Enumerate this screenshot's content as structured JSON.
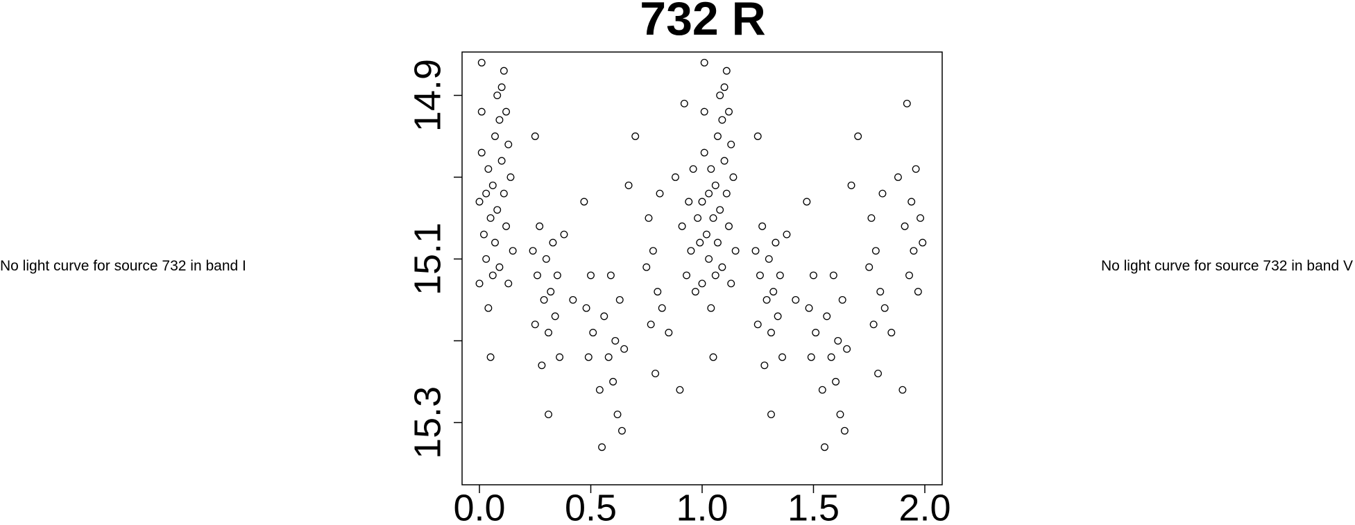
{
  "left_text": "No light curve for source 732 in band I",
  "right_text": "No light curve for source 732 in band V",
  "chart_data": {
    "type": "scatter",
    "title": "732 R",
    "x": [
      0,
      0,
      0.01,
      0.01,
      0.01,
      0.02,
      0.03,
      0.03,
      0.04,
      0.04,
      0.05,
      0.05,
      0.06,
      0.06,
      0.07,
      0.07,
      0.08,
      0.08,
      0.09,
      0.09,
      0.1,
      0.1,
      0.11,
      0.11,
      0.12,
      0.12,
      0.13,
      0.13,
      0.14,
      0.15,
      0.24,
      0.25,
      0.25,
      0.26,
      0.27,
      0.28,
      0.29,
      0.3,
      0.31,
      0.31,
      0.32,
      0.33,
      0.34,
      0.35,
      0.36,
      0.38,
      0.42,
      0.47,
      0.48,
      0.49,
      0.5,
      0.51,
      0.54,
      0.55,
      0.56,
      0.58,
      0.59,
      0.6,
      0.61,
      0.62,
      0.63,
      0.64,
      0.65,
      0.67,
      0.7,
      0.75,
      0.76,
      0.77,
      0.78,
      0.79,
      0.8,
      0.81,
      0.82,
      0.85,
      0.88,
      0.9,
      0.91,
      0.92,
      0.93,
      0.94,
      0.95,
      0.96,
      0.97,
      0.98,
      0.99,
      1,
      1,
      1.01,
      1.01,
      1.01,
      1.02,
      1.03,
      1.03,
      1.04,
      1.04,
      1.05,
      1.05,
      1.06,
      1.06,
      1.07,
      1.07,
      1.08,
      1.08,
      1.09,
      1.09,
      1.1,
      1.1,
      1.11,
      1.11,
      1.12,
      1.12,
      1.13,
      1.13,
      1.14,
      1.15,
      1.24,
      1.25,
      1.25,
      1.26,
      1.27,
      1.28,
      1.29,
      1.3,
      1.31,
      1.31,
      1.32,
      1.33,
      1.34,
      1.35,
      1.36,
      1.38,
      1.42,
      1.47,
      1.48,
      1.49,
      1.5,
      1.51,
      1.54,
      1.55,
      1.56,
      1.58,
      1.59,
      1.6,
      1.61,
      1.62,
      1.63,
      1.64,
      1.65,
      1.67,
      1.7,
      1.75,
      1.76,
      1.77,
      1.78,
      1.79,
      1.8,
      1.81,
      1.82,
      1.85,
      1.88,
      1.9,
      1.91,
      1.92,
      1.93,
      1.94,
      1.95,
      1.96,
      1.97,
      1.98,
      1.99
    ],
    "values": [
      15.03,
      15.13,
      14.86,
      14.92,
      14.97,
      15.07,
      15.02,
      15.1,
      14.99,
      15.16,
      15.05,
      15.22,
      15.01,
      15.12,
      14.95,
      15.08,
      14.9,
      15.04,
      14.93,
      15.11,
      14.89,
      14.98,
      14.87,
      15.02,
      14.92,
      15.06,
      14.96,
      15.13,
      15.0,
      15.09,
      15.09,
      15.18,
      14.95,
      15.12,
      15.06,
      15.23,
      15.15,
      15.1,
      15.19,
      15.29,
      15.14,
      15.08,
      15.17,
      15.12,
      15.22,
      15.07,
      15.15,
      15.03,
      15.16,
      15.22,
      15.12,
      15.19,
      15.26,
      15.33,
      15.17,
      15.22,
      15.12,
      15.25,
      15.2,
      15.29,
      15.15,
      15.31,
      15.21,
      15.01,
      14.95,
      15.11,
      15.05,
      15.18,
      15.09,
      15.24,
      15.14,
      15.02,
      15.16,
      15.19,
      15.0,
      15.26,
      15.06,
      14.91,
      15.12,
      15.03,
      15.09,
      14.99,
      15.14,
      15.05,
      15.08,
      15.03,
      15.13,
      14.86,
      14.92,
      14.97,
      15.07,
      15.02,
      15.1,
      14.99,
      15.16,
      15.05,
      15.22,
      15.01,
      15.12,
      14.95,
      15.08,
      14.9,
      15.04,
      14.93,
      15.11,
      14.89,
      14.98,
      14.87,
      15.02,
      14.92,
      15.06,
      14.96,
      15.13,
      15.0,
      15.09,
      15.09,
      15.18,
      14.95,
      15.12,
      15.06,
      15.23,
      15.15,
      15.1,
      15.19,
      15.29,
      15.14,
      15.08,
      15.17,
      15.12,
      15.22,
      15.07,
      15.15,
      15.03,
      15.16,
      15.22,
      15.12,
      15.19,
      15.26,
      15.33,
      15.17,
      15.22,
      15.12,
      15.25,
      15.2,
      15.29,
      15.15,
      15.31,
      15.21,
      15.01,
      14.95,
      15.11,
      15.05,
      15.18,
      15.09,
      15.24,
      15.14,
      15.02,
      15.16,
      15.19,
      15.0,
      15.26,
      15.06,
      14.91,
      15.12,
      15.03,
      15.09,
      14.99,
      15.14,
      15.05,
      15.08
    ],
    "color": "#000000",
    "xlim": [
      -0.078,
      2.078
    ],
    "ylim": [
      15.376,
      14.847
    ],
    "xticks": [
      {
        "value": 0,
        "label": "0.0"
      },
      0.5,
      {
        "value": 1,
        "label": "1.0"
      },
      1.5,
      {
        "value": 2,
        "label": "2.0"
      }
    ],
    "yticks": [
      14.9,
      15.1,
      15.3
    ],
    "minor_yticks": [
      15.0,
      15.2
    ]
  }
}
